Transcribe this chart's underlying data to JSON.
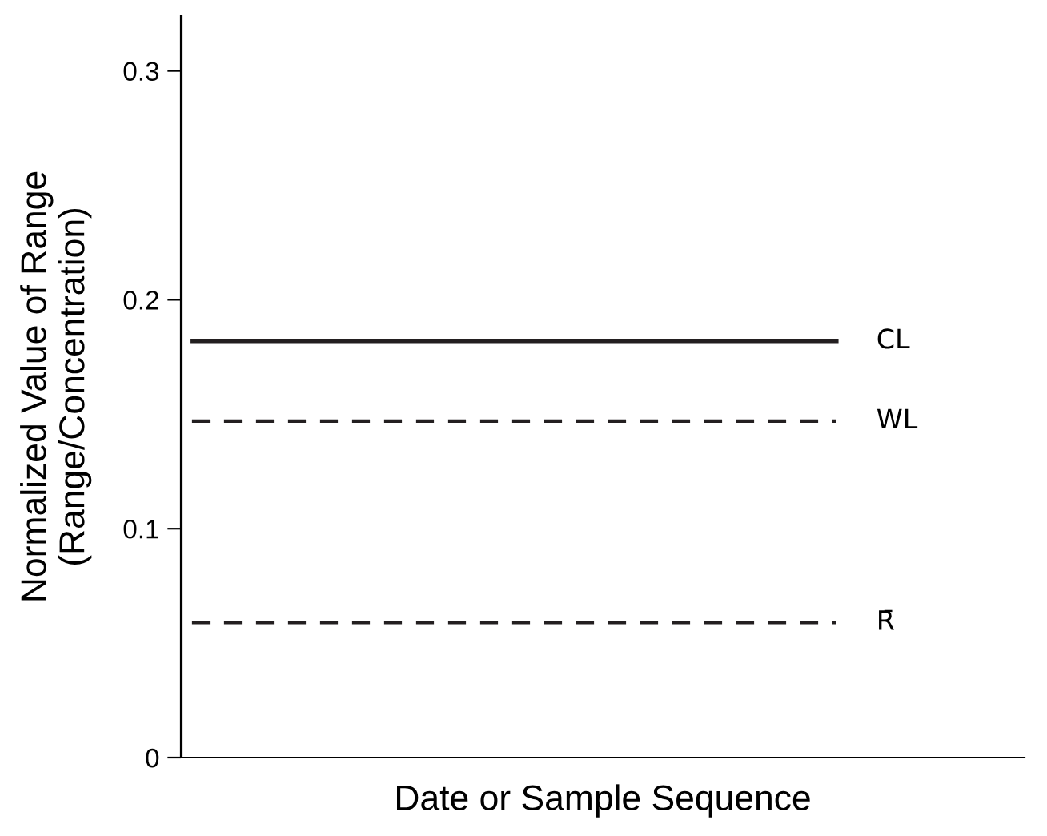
{
  "chart_data": {
    "type": "line",
    "xlabel": "Date or Sample Sequence",
    "ylabel": "Normalized Value of Range\n(Range/Concentration)",
    "ylim": [
      0,
      0.324
    ],
    "yticks": [
      0,
      0.1,
      0.2,
      0.3
    ],
    "tick_labels": "y",
    "marker": "none",
    "categories": [
      null,
      null,
      null,
      null,
      null,
      null,
      null,
      null,
      null,
      null,
      null,
      null,
      null,
      null,
      null,
      null,
      null,
      null,
      null,
      null,
      null,
      null,
      null,
      null,
      null,
      null,
      null,
      null,
      null,
      null
    ],
    "series": [
      {
        "name": "CL",
        "color": "#231f20",
        "line_style": "solid",
        "values": [
          0.182,
          0.182,
          0.182,
          0.182,
          0.182,
          0.182,
          0.182,
          0.182,
          0.182,
          0.182,
          0.182,
          0.182,
          0.182,
          0.182,
          0.182,
          0.182,
          0.182,
          0.182,
          0.182,
          0.182,
          0.182,
          0.182,
          0.182,
          0.182,
          0.182,
          0.182,
          0.182,
          0.182,
          0.182,
          0.182
        ]
      },
      {
        "name": "WL",
        "color": "#231f20",
        "line_style": "dashed",
        "values": [
          0.147,
          0.147,
          0.147,
          0.147,
          0.147,
          0.147,
          0.147,
          0.147,
          0.147,
          0.147,
          0.147,
          0.147,
          0.147,
          0.147,
          0.147,
          0.147,
          0.147,
          0.147,
          0.147,
          0.147,
          0.147,
          0.147,
          0.147,
          0.147,
          0.147,
          0.147,
          0.147,
          0.147,
          0.147,
          0.147
        ]
      },
      {
        "name": "R̄",
        "color": "#231f20",
        "line_style": "dashed",
        "values": [
          0.059,
          0.059,
          0.059,
          0.059,
          0.059,
          0.059,
          0.059,
          0.059,
          0.059,
          0.059,
          0.059,
          0.059,
          0.059,
          0.059,
          0.059,
          0.059,
          0.059,
          0.059,
          0.059,
          0.059,
          0.059,
          0.059,
          0.059,
          0.059,
          0.059,
          0.059,
          0.059,
          0.059,
          0.059,
          0.059
        ]
      }
    ]
  }
}
